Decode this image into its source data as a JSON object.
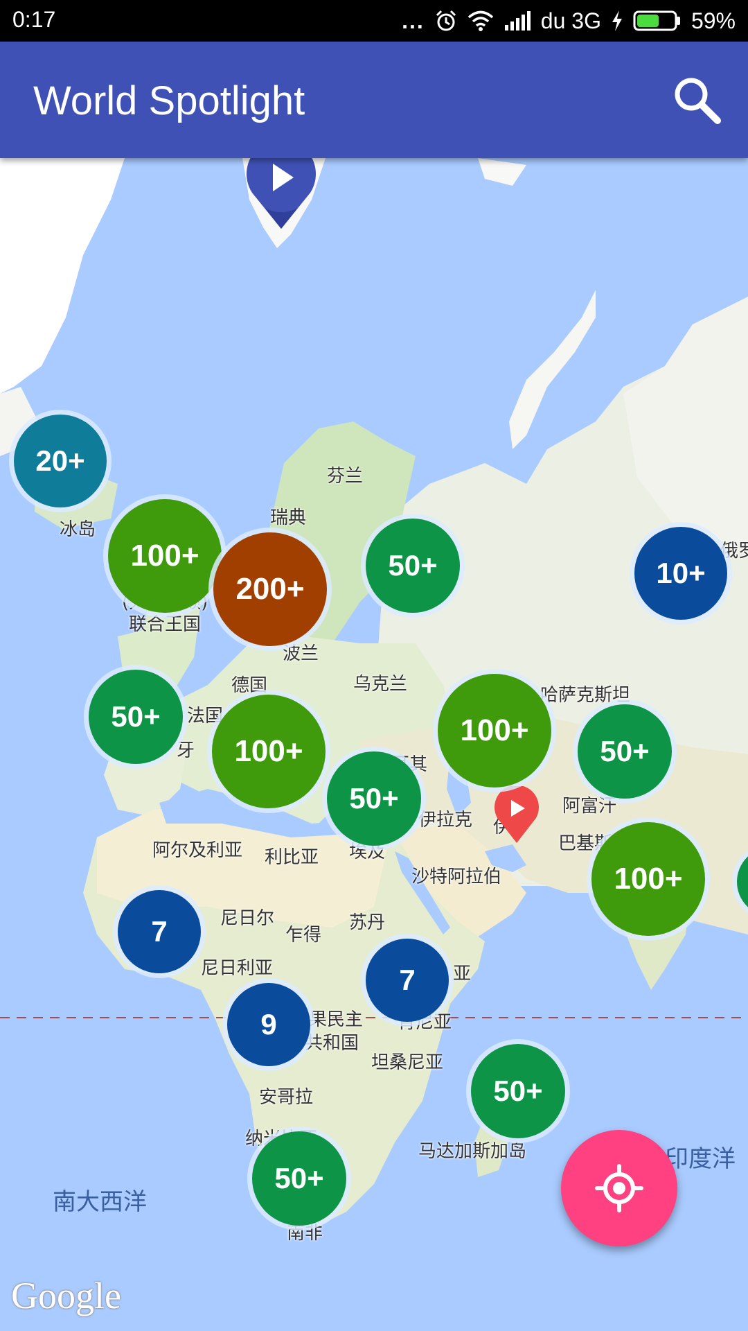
{
  "status": {
    "time": "0:17",
    "dots": "...",
    "carrier": "du 3G",
    "battery": "59%",
    "battery_level": 0.59,
    "icons": [
      "alarm-icon",
      "wifi-icon",
      "signal-icon",
      "charging-icon",
      "battery-icon"
    ]
  },
  "appbar": {
    "title": "World Spotlight",
    "search_icon": "search-icon",
    "color": "#3f51b5"
  },
  "map": {
    "labels": {
      "finland": "芬兰",
      "sweden": "瑞典",
      "iceland": "冰岛",
      "uk_1": "(大不列颠)",
      "uk_2": "联合王国",
      "poland": "波兰",
      "germany": "德国",
      "ukraine": "乌克兰",
      "france": "法国",
      "spain": "牙",
      "kazakhstan": "哈萨克斯坦",
      "russia": "俄罗",
      "turkey": "耳其",
      "iraq": "伊拉克",
      "iran": "伊",
      "afghanistan": "阿富汗",
      "pakistan": "巴基斯",
      "algeria": "阿尔及利亚",
      "libya": "利比亚",
      "egypt": "埃及",
      "saudi": "沙特阿拉伯",
      "niger": "尼日尔",
      "chad": "乍得",
      "sudan": "苏丹",
      "nigeria": "尼日利亚",
      "ethiopia": "亚",
      "kenya": "肯尼亚",
      "congo_1": "果民主",
      "congo_2": "共和国",
      "tanzania": "坦桑尼亚",
      "angola": "安哥拉",
      "namibia": "纳米比亚",
      "madagascar": "马达加斯加岛",
      "south_africa": "南非",
      "south_atlantic": "南大西洋",
      "indian_ocean": "印度洋"
    },
    "clusters": [
      {
        "label": "20+",
        "color": "#0f7d9a"
      },
      {
        "label": "100+",
        "color": "#3f9b0b"
      },
      {
        "label": "200+",
        "color": "#a03f00"
      },
      {
        "label": "50+",
        "color": "#0e9447"
      },
      {
        "label": "10+",
        "color": "#0a4c9b"
      },
      {
        "label": "50+",
        "color": "#0e9447"
      },
      {
        "label": "100+",
        "color": "#3f9b0b"
      },
      {
        "label": "50+",
        "color": "#0e9447"
      },
      {
        "label": "100+",
        "color": "#3f9b0b"
      },
      {
        "label": "50+",
        "color": "#0e9447"
      },
      {
        "label": "100+",
        "color": "#3f9b0b"
      },
      {
        "label": "7",
        "color": "#0a4c9b"
      },
      {
        "label": "7",
        "color": "#0a4c9b"
      },
      {
        "label": "9",
        "color": "#0a4c9b"
      },
      {
        "label": "50+",
        "color": "#0e9447"
      },
      {
        "label": "50+",
        "color": "#0e9447"
      }
    ],
    "markers": [
      {
        "name": "video-marker-arctic",
        "color": "#3f51b5",
        "icon": "play-icon"
      },
      {
        "name": "video-marker-gulf",
        "color": "#ef4848",
        "icon": "play-icon"
      }
    ],
    "attribution": "Google"
  },
  "fab": {
    "icon": "my-location-icon",
    "color": "#ff4081"
  }
}
